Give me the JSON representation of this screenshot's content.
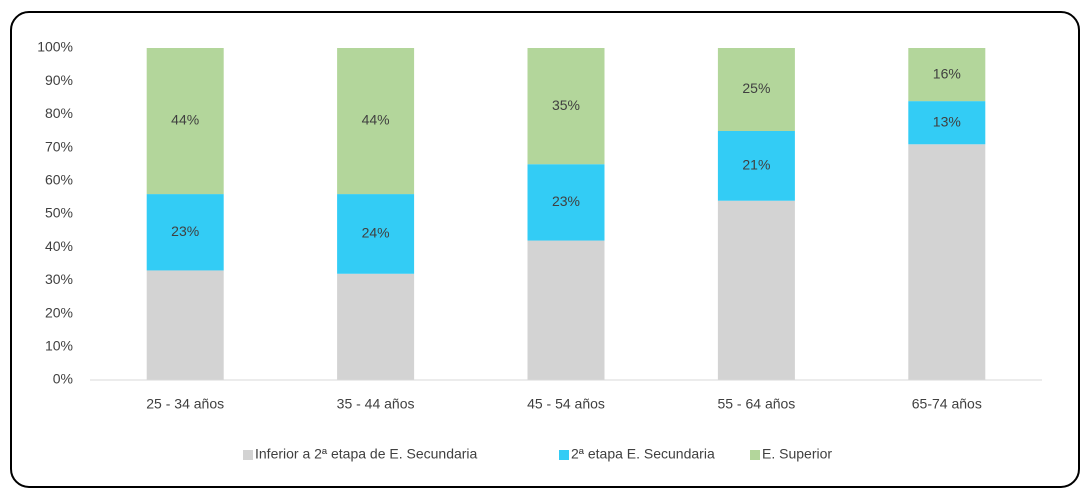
{
  "chart_data": {
    "type": "stacked_bar",
    "categories": [
      "25 - 34 años",
      "35 - 44 años",
      "45 - 54 años",
      "55 - 64 años",
      "65-74 años"
    ],
    "series": [
      {
        "name": "Inferior a 2ª etapa de E. Secundaria",
        "color": "#d3d3d3",
        "values": [
          33,
          32,
          42,
          54,
          71
        ]
      },
      {
        "name": "2ª etapa E. Secundaria",
        "color": "#33ccf5",
        "values": [
          23,
          24,
          23,
          21,
          13
        ],
        "value_labels": [
          "23%",
          "24%",
          "23%",
          "21%",
          "13%"
        ]
      },
      {
        "name": "E. Superior",
        "color": "#b3d69b",
        "values": [
          44,
          44,
          35,
          25,
          16
        ],
        "value_labels": [
          "44%",
          "44%",
          "35%",
          "25%",
          "16%"
        ]
      }
    ],
    "ylim": [
      0,
      100
    ],
    "yticks": [
      {
        "value": 0,
        "label": "0%"
      },
      {
        "value": 10,
        "label": "10%"
      },
      {
        "value": 20,
        "label": "20%"
      },
      {
        "value": 30,
        "label": "30%"
      },
      {
        "value": 40,
        "label": "40%"
      },
      {
        "value": 50,
        "label": "50%"
      },
      {
        "value": 60,
        "label": "60%"
      },
      {
        "value": 70,
        "label": "70%"
      },
      {
        "value": 80,
        "label": "80%"
      },
      {
        "value": 90,
        "label": "90%"
      },
      {
        "value": 100,
        "label": "100%"
      }
    ],
    "legend": "bottom"
  }
}
